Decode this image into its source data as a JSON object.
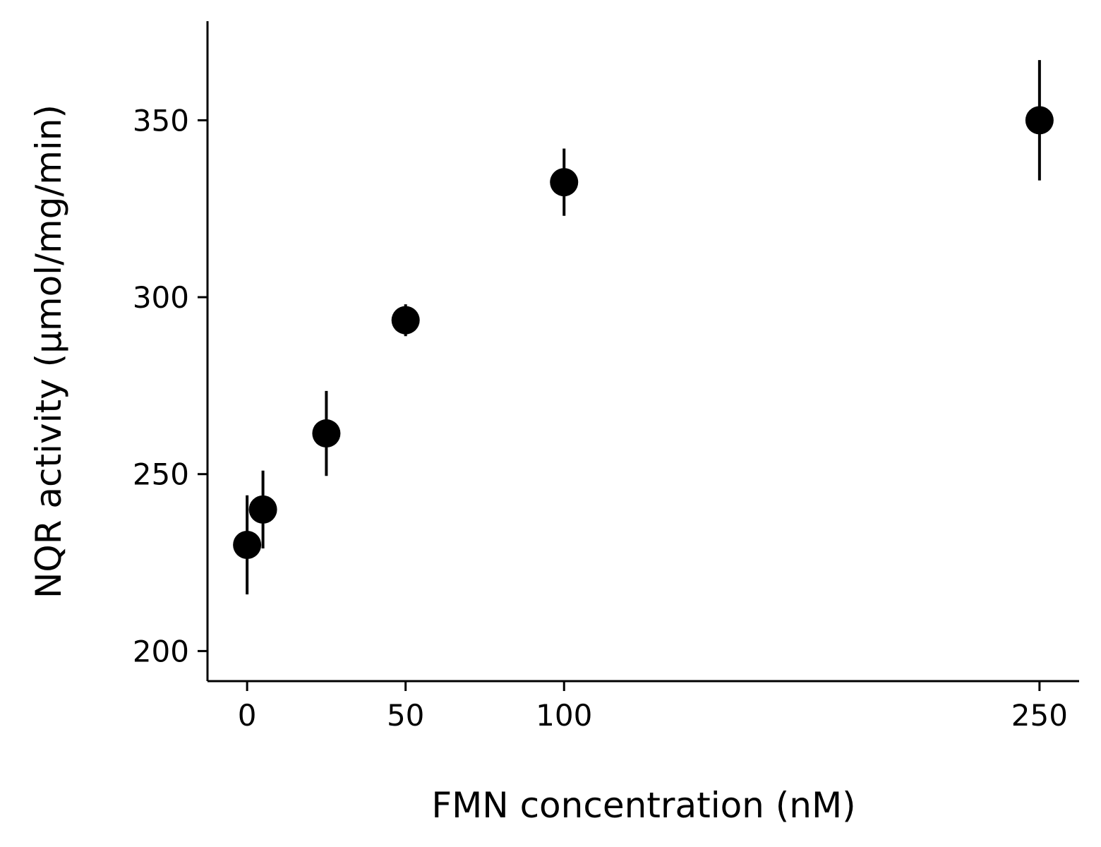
{
  "chart_data": {
    "type": "scatter",
    "title": "",
    "xlabel": "FMN concentration (nM)",
    "ylabel": "NQR activity (µmol/mg/min)",
    "xlim": [
      -12.5,
      262.5
    ],
    "ylim": [
      191.5,
      378
    ],
    "x_ticks": [
      0,
      50,
      100,
      250
    ],
    "y_ticks": [
      200,
      250,
      300,
      350
    ],
    "grid": false,
    "legend": "none",
    "marker_color": "#000000",
    "series": [
      {
        "points": [
          {
            "x": 0,
            "y": 230,
            "err_low": 216,
            "err_high": 244
          },
          {
            "x": 5,
            "y": 240,
            "err_low": 229,
            "err_high": 251
          },
          {
            "x": 25,
            "y": 261.5,
            "err_low": 249.5,
            "err_high": 273.5
          },
          {
            "x": 50,
            "y": 293.5,
            "err_low": 289,
            "err_high": 298
          },
          {
            "x": 100,
            "y": 332.5,
            "err_low": 323,
            "err_high": 342
          },
          {
            "x": 250,
            "y": 350,
            "err_low": 333,
            "err_high": 367
          }
        ]
      }
    ]
  }
}
